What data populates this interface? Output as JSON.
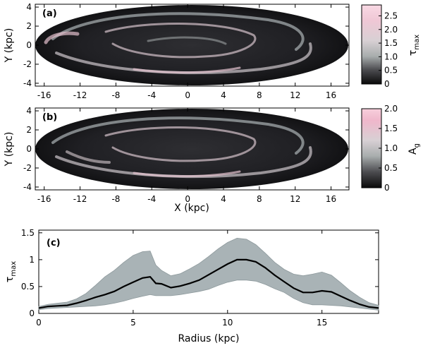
{
  "chart_data": [
    {
      "panel": "(a)",
      "type": "heatmap",
      "title": "",
      "xlabel": "X (kpc)",
      "ylabel": "Y (kpc)",
      "xlim": [
        -17,
        18
      ],
      "ylim": [
        -4.3,
        4.3
      ],
      "xticks": [
        "-16",
        "-12",
        "-8",
        "-4",
        "0",
        "4",
        "8",
        "12",
        "16"
      ],
      "yticks": [
        "4",
        "2",
        "0",
        "-2",
        "-4"
      ],
      "colorbar": {
        "label": "τ",
        "label_sub": "max",
        "range": [
          0,
          2.9
        ],
        "ticks": [
          "0",
          "0.5",
          "1.0",
          "1.5",
          "2.0",
          "2.5"
        ]
      }
    },
    {
      "panel": "(b)",
      "type": "heatmap",
      "title": "",
      "xlabel": "X (kpc)",
      "ylabel": "Y (kpc)",
      "xlim": [
        -17,
        18
      ],
      "ylim": [
        -4.3,
        4.3
      ],
      "xticks": [
        "-16",
        "-12",
        "-8",
        "-4",
        "0",
        "4",
        "8",
        "12",
        "16"
      ],
      "yticks": [
        "4",
        "2",
        "0",
        "-2",
        "-4"
      ],
      "colorbar": {
        "label": "A",
        "label_sub": "g",
        "range": [
          0,
          2.0
        ],
        "ticks": [
          "0",
          "0.5",
          "1.0",
          "1.5",
          "2.0"
        ]
      }
    },
    {
      "panel": "(c)",
      "type": "line",
      "title": "",
      "xlabel": "Radius (kpc)",
      "ylabel": "τ",
      "ylabel_sub": "max",
      "xlim": [
        0,
        18
      ],
      "ylim": [
        0,
        1.55
      ],
      "xticks": [
        "0",
        "5",
        "10",
        "15"
      ],
      "yticks": [
        "1.5",
        "1",
        "0.5",
        "0"
      ],
      "x": [
        0,
        0.5,
        1,
        1.5,
        2,
        2.5,
        3,
        3.5,
        4,
        4.5,
        5,
        5.5,
        5.9,
        6.2,
        6.5,
        7,
        7.5,
        8,
        8.5,
        9,
        9.5,
        10,
        10.5,
        11,
        11.5,
        12,
        12.5,
        13,
        13.5,
        14,
        14.5,
        15,
        15.5,
        16,
        16.5,
        17,
        17.5,
        18
      ],
      "series": [
        {
          "name": "mean",
          "values": [
            0.1,
            0.13,
            0.14,
            0.15,
            0.19,
            0.24,
            0.3,
            0.35,
            0.41,
            0.5,
            0.58,
            0.66,
            0.68,
            0.56,
            0.55,
            0.48,
            0.51,
            0.56,
            0.62,
            0.72,
            0.82,
            0.92,
            1.0,
            1.0,
            0.96,
            0.85,
            0.71,
            0.59,
            0.47,
            0.39,
            0.39,
            0.42,
            0.4,
            0.32,
            0.24,
            0.17,
            0.12,
            0.1
          ]
        },
        {
          "name": "upper",
          "values": [
            0.13,
            0.17,
            0.19,
            0.21,
            0.27,
            0.37,
            0.52,
            0.68,
            0.8,
            0.95,
            1.08,
            1.15,
            1.16,
            0.9,
            0.8,
            0.7,
            0.74,
            0.83,
            0.93,
            1.06,
            1.2,
            1.32,
            1.4,
            1.38,
            1.28,
            1.12,
            0.95,
            0.82,
            0.73,
            0.7,
            0.73,
            0.77,
            0.71,
            0.57,
            0.42,
            0.3,
            0.2,
            0.15
          ]
        },
        {
          "name": "lower",
          "values": [
            0.07,
            0.09,
            0.1,
            0.11,
            0.12,
            0.13,
            0.14,
            0.16,
            0.19,
            0.23,
            0.28,
            0.32,
            0.35,
            0.33,
            0.33,
            0.33,
            0.35,
            0.38,
            0.41,
            0.45,
            0.52,
            0.58,
            0.62,
            0.62,
            0.6,
            0.54,
            0.46,
            0.39,
            0.28,
            0.2,
            0.16,
            0.16,
            0.15,
            0.14,
            0.12,
            0.1,
            0.08,
            0.06
          ]
        }
      ]
    }
  ]
}
